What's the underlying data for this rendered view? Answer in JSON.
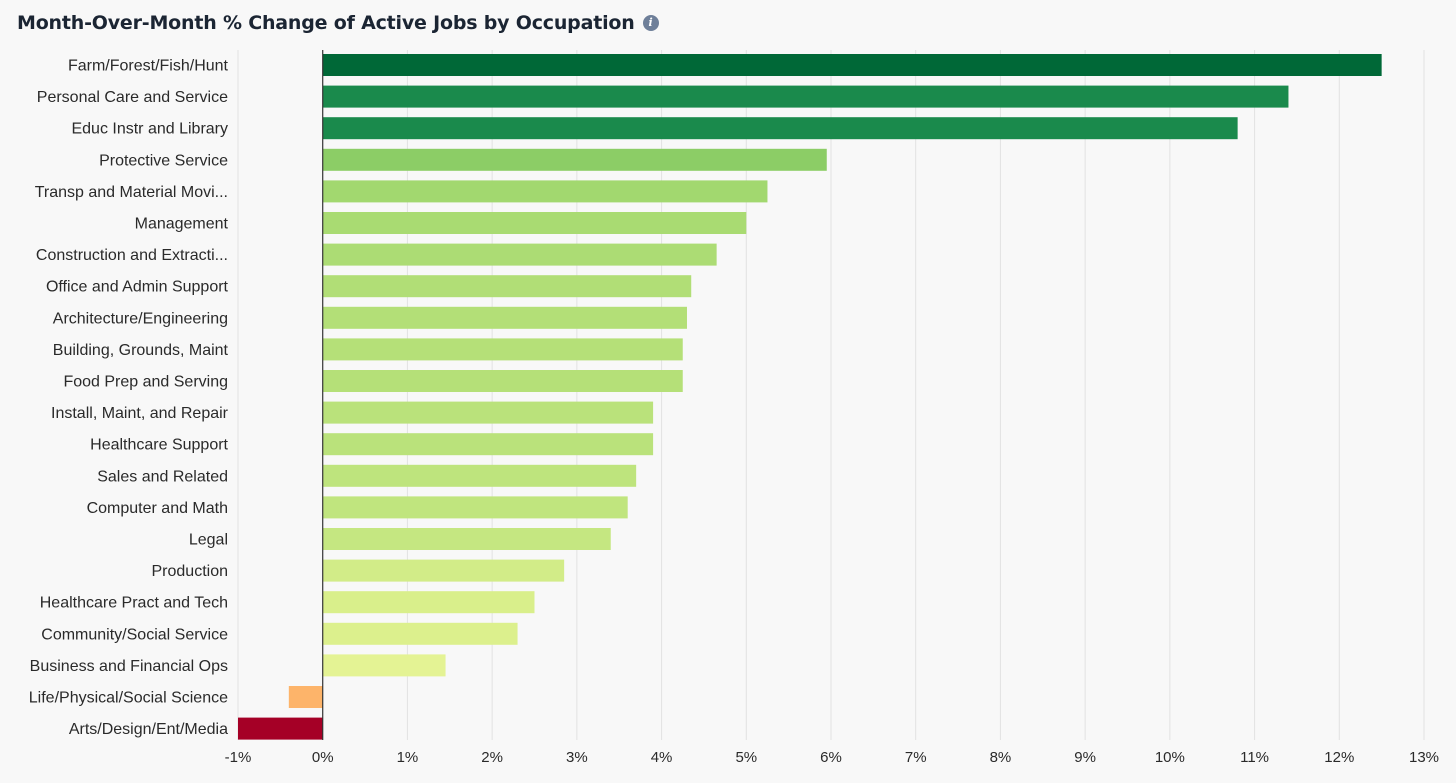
{
  "header": {
    "title": "Month-Over-Month % Change of Active Jobs by Occupation",
    "info_icon": "info-icon"
  },
  "chart_data": {
    "type": "bar",
    "orientation": "horizontal",
    "title": "Month-Over-Month % Change of Active Jobs by Occupation",
    "xlabel": "",
    "ylabel": "",
    "xlim": [
      -1,
      13
    ],
    "grid": true,
    "x_ticks": [
      -1,
      0,
      1,
      2,
      3,
      4,
      5,
      6,
      7,
      8,
      9,
      10,
      11,
      12,
      13
    ],
    "x_tick_labels": [
      "-1%",
      "0%",
      "1%",
      "2%",
      "3%",
      "4%",
      "5%",
      "6%",
      "7%",
      "8%",
      "9%",
      "10%",
      "11%",
      "12%",
      "13%"
    ],
    "categories": [
      "Farm/Forest/Fish/Hunt",
      "Personal Care and Service",
      "Educ Instr and Library",
      "Protective Service",
      "Transp and Material Movi...",
      "Management",
      "Construction and Extracti...",
      "Office and Admin Support",
      "Architecture/Engineering",
      "Building, Grounds, Maint",
      "Food Prep and Serving",
      "Install, Maint, and Repair",
      "Healthcare Support",
      "Sales and Related",
      "Computer and Math",
      "Legal",
      "Production",
      "Healthcare Pract and Tech",
      "Community/Social Service",
      "Business and Financial Ops",
      "Life/Physical/Social Science",
      "Arts/Design/Ent/Media"
    ],
    "values": [
      12.5,
      11.4,
      10.8,
      5.95,
      5.25,
      5.0,
      4.65,
      4.35,
      4.3,
      4.25,
      4.25,
      3.9,
      3.9,
      3.7,
      3.6,
      3.4,
      2.85,
      2.5,
      2.3,
      1.45,
      -0.4,
      -1.0
    ],
    "colors": [
      "#006837",
      "#1a8a4c",
      "#1a8a4c",
      "#8ccd66",
      "#a2d86f",
      "#a9db72",
      "#acdc74",
      "#b1de76",
      "#b3df77",
      "#b5e078",
      "#b5e078",
      "#bae27b",
      "#bae27b",
      "#bee47d",
      "#c0e57e",
      "#c5e781",
      "#d2ec88",
      "#d9ef8b",
      "#dcf08d",
      "#e4f394",
      "#fdb46a",
      "#a50026"
    ]
  }
}
